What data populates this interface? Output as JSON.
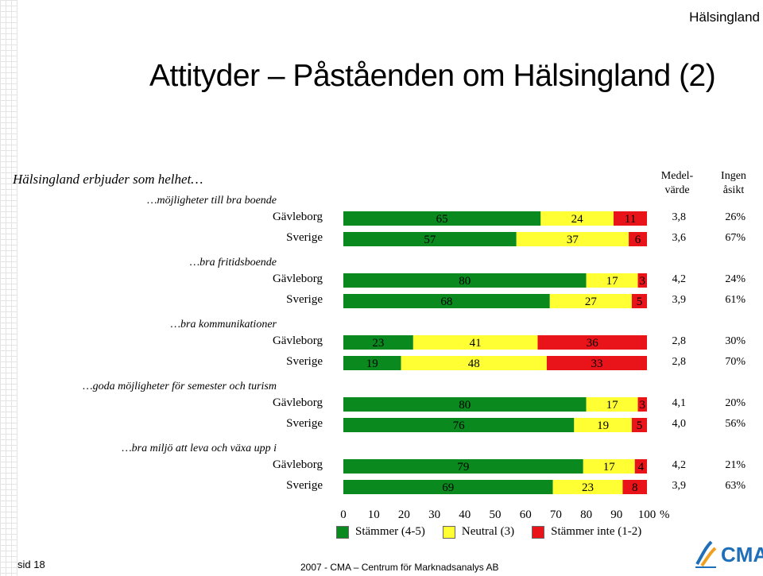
{
  "region": "Hälsingland",
  "title": "Attityder – Påståenden om Hälsingland (2)",
  "subtitle": "Hälsingland erbjuder som helhet…",
  "headers": {
    "mean_line1": "Medel-",
    "mean_line2": "värde",
    "no_opinion_line1": "Ingen",
    "no_opinion_line2": "åsikt"
  },
  "footer": "2007  -  CMA – Centrum för Marknadsanalys AB",
  "page": "sid 18",
  "logo_text": "CMA",
  "colors": {
    "agree": "#0a8a1e",
    "neutral": "#ffff33",
    "disagree": "#e8141a"
  },
  "chart_data": {
    "type": "bar",
    "orientation": "horizontal",
    "stacked": true,
    "xlim": [
      0,
      100
    ],
    "x_ticks": [
      0,
      10,
      20,
      30,
      40,
      50,
      60,
      70,
      80,
      90,
      100
    ],
    "x_unit": "%",
    "legend": [
      "Stämmer (4-5)",
      "Neutral (3)",
      "Stämmer inte (1-2)"
    ],
    "legend_position": "bottom",
    "groups": [
      {
        "label": "…möjligheter till bra boende",
        "rows": [
          {
            "name": "Gävleborg",
            "agree": 65,
            "neutral": 24,
            "disagree": 11,
            "mean": "3,8",
            "no_opinion": "26%"
          },
          {
            "name": "Sverige",
            "agree": 57,
            "neutral": 37,
            "disagree": 6,
            "mean": "3,6",
            "no_opinion": "67%"
          }
        ]
      },
      {
        "label": "…bra fritidsboende",
        "rows": [
          {
            "name": "Gävleborg",
            "agree": 80,
            "neutral": 17,
            "disagree": 3,
            "mean": "4,2",
            "no_opinion": "24%"
          },
          {
            "name": "Sverige",
            "agree": 68,
            "neutral": 27,
            "disagree": 5,
            "mean": "3,9",
            "no_opinion": "61%"
          }
        ]
      },
      {
        "label": "…bra kommunikationer",
        "rows": [
          {
            "name": "Gävleborg",
            "agree": 23,
            "neutral": 41,
            "disagree": 36,
            "mean": "2,8",
            "no_opinion": "30%"
          },
          {
            "name": "Sverige",
            "agree": 19,
            "neutral": 48,
            "disagree": 33,
            "mean": "2,8",
            "no_opinion": "70%"
          }
        ]
      },
      {
        "label": "…goda möjligheter för semester och turism",
        "rows": [
          {
            "name": "Gävleborg",
            "agree": 80,
            "neutral": 17,
            "disagree": 3,
            "mean": "4,1",
            "no_opinion": "20%"
          },
          {
            "name": "Sverige",
            "agree": 76,
            "neutral": 19,
            "disagree": 5,
            "mean": "4,0",
            "no_opinion": "56%"
          }
        ]
      },
      {
        "label": "…bra miljö att leva och växa upp i",
        "rows": [
          {
            "name": "Gävleborg",
            "agree": 79,
            "neutral": 17,
            "disagree": 4,
            "mean": "4,2",
            "no_opinion": "21%"
          },
          {
            "name": "Sverige",
            "agree": 69,
            "neutral": 23,
            "disagree": 8,
            "mean": "3,9",
            "no_opinion": "63%"
          }
        ]
      }
    ]
  }
}
